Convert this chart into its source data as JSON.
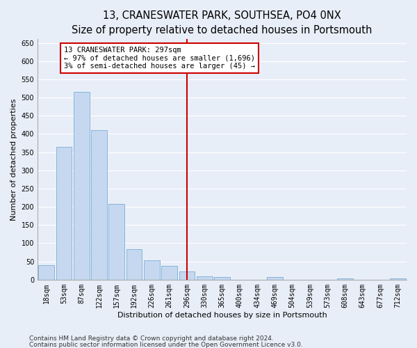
{
  "title": "13, CRANESWATER PARK, SOUTHSEA, PO4 0NX",
  "subtitle": "Size of property relative to detached houses in Portsmouth",
  "xlabel": "Distribution of detached houses by size in Portsmouth",
  "ylabel": "Number of detached properties",
  "footnote1": "Contains HM Land Registry data © Crown copyright and database right 2024.",
  "footnote2": "Contains public sector information licensed under the Open Government Licence v3.0.",
  "bar_labels": [
    "18sqm",
    "53sqm",
    "87sqm",
    "122sqm",
    "157sqm",
    "192sqm",
    "226sqm",
    "261sqm",
    "296sqm",
    "330sqm",
    "365sqm",
    "400sqm",
    "434sqm",
    "469sqm",
    "504sqm",
    "539sqm",
    "573sqm",
    "608sqm",
    "643sqm",
    "677sqm",
    "712sqm"
  ],
  "bar_values": [
    40,
    365,
    515,
    410,
    207,
    83,
    54,
    38,
    22,
    10,
    7,
    0,
    0,
    8,
    0,
    0,
    0,
    4,
    0,
    0,
    4
  ],
  "bar_color": "#c5d8f0",
  "bar_edge_color": "#7aadd4",
  "property_bar_index": 8,
  "vline_color": "#cc0000",
  "annotation_text": "13 CRANESWATER PARK: 297sqm\n← 97% of detached houses are smaller (1,696)\n3% of semi-detached houses are larger (45) →",
  "annotation_box_color": "#ffffff",
  "annotation_box_edge": "#cc0000",
  "ylim": [
    0,
    660
  ],
  "yticks": [
    0,
    50,
    100,
    150,
    200,
    250,
    300,
    350,
    400,
    450,
    500,
    550,
    600,
    650
  ],
  "bg_color": "#e8eef8",
  "grid_color": "#ffffff",
  "title_fontsize": 10.5,
  "subtitle_fontsize": 9.5,
  "axis_label_fontsize": 8,
  "tick_fontsize": 7,
  "annotation_fontsize": 7.5,
  "footnote_fontsize": 6.5
}
